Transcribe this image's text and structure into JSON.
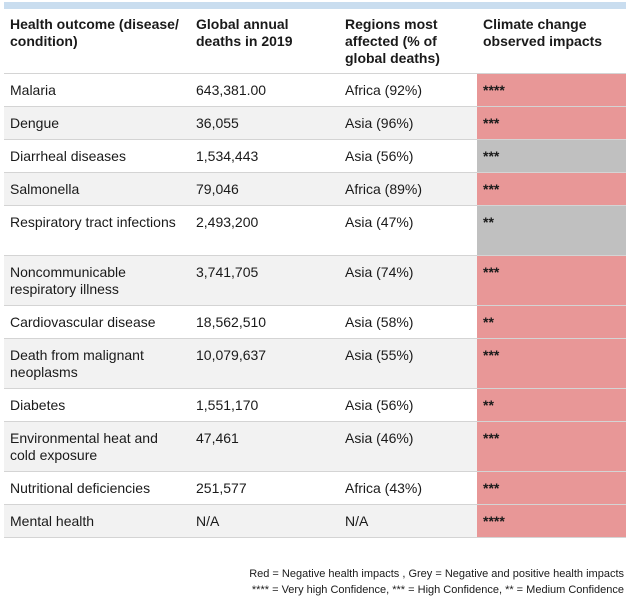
{
  "table": {
    "headers": [
      "Health outcome (disease/ condition)",
      "Global annual deaths in 2019",
      "Regions most affected (% of global deaths)",
      "Climate change observed impacts"
    ],
    "rows": [
      {
        "outcome": "Malaria",
        "deaths": "643,381.00",
        "region": "Africa (92%)",
        "impact": "****",
        "impact_color": "red"
      },
      {
        "outcome": "Dengue",
        "deaths": "36,055",
        "region": "Asia (96%)",
        "impact": "***",
        "impact_color": "red"
      },
      {
        "outcome": "Diarrheal diseases",
        "deaths": "1,534,443",
        "region": "Asia (56%)",
        "impact": "***",
        "impact_color": "grey"
      },
      {
        "outcome": "Salmonella",
        "deaths": "79,046",
        "region": "Africa (89%)",
        "impact": "***",
        "impact_color": "red"
      },
      {
        "outcome": "Respiratory tract infections",
        "deaths": "2,493,200",
        "region": "Asia (47%)",
        "impact": "**",
        "impact_color": "grey"
      },
      {
        "outcome": "Noncommunicable respiratory illness",
        "deaths": "3,741,705",
        "region": "Asia (74%)",
        "impact": "***",
        "impact_color": "red"
      },
      {
        "outcome": "Cardiovascular disease",
        "deaths": "18,562,510",
        "region": "Asia (58%)",
        "impact": "**",
        "impact_color": "red"
      },
      {
        "outcome": "Death from malignant neoplasms",
        "deaths": "10,079,637",
        "region": "Asia (55%)",
        "impact": "***",
        "impact_color": "red"
      },
      {
        "outcome": "Diabetes",
        "deaths": "1,551,170",
        "region": "Asia (56%)",
        "impact": "**",
        "impact_color": "red"
      },
      {
        "outcome": "Environmental heat and cold exposure",
        "deaths": "47,461",
        "region": "Asia (46%)",
        "impact": "***",
        "impact_color": "red"
      },
      {
        "outcome": "Nutritional deficiencies",
        "deaths": "251,577",
        "region": "Africa (43%)",
        "impact": "***",
        "impact_color": "red"
      },
      {
        "outcome": "Mental health",
        "deaths": "N/A",
        "region": "N/A",
        "impact": "****",
        "impact_color": "red"
      }
    ]
  },
  "footnote": {
    "line1": "Red = Negative health impacts , Grey = Negative and positive health impacts",
    "line2": "**** = Very high Confidence, *** = High Confidence, ** = Medium Confidence"
  },
  "colors": {
    "red": "#e89797",
    "grey": "#c0c0c0",
    "header_bar": "#c9ddef"
  }
}
